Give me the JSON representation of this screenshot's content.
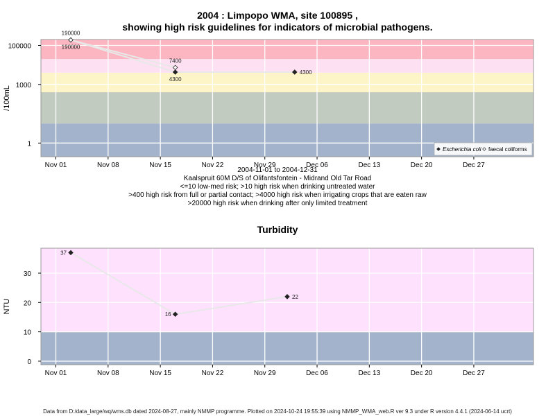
{
  "page": {
    "title_line1": "2004 : Limpopo WMA, site 100895 ,",
    "title_line2": "showing high risk guidelines for indicators of microbial pathogens.",
    "caption_lines": [
      "2004-11-01 to 2004-12-31",
      "Kaalspruit 60M D/S of Olifantsfontein - Midrand Old Tar Road",
      "<=10 low-med risk; >10 high risk when drinking untreated water",
      ">400 high risk from full or partial contact; >4000 high risk when irrigating crops that are eaten raw",
      ">20000 high risk when drinking after only limited treatment"
    ],
    "turbidity_title": "Turbidity",
    "footer": "Data from D:/data_large/wq/wms.db dated 2024-08-27, mainly NMMP programme. Plotted on 2024-10-24 19:55:39 using NMMP_WMA_web.R ver 9.3 under R version 4.4.1 (2024-06-14 ucrt)"
  },
  "chart_data": [
    {
      "type": "scatter",
      "ylabel": "/100mL",
      "yscale": "log",
      "ylim": [
        0.2,
        200000
      ],
      "x_ticks": [
        "Nov 01",
        "Nov 08",
        "Nov 15",
        "Nov 22",
        "Nov 29",
        "Dec 06",
        "Dec 13",
        "Dec 20",
        "Dec 27"
      ],
      "x_tick_dates": [
        "2004-11-01",
        "2004-11-08",
        "2004-11-15",
        "2004-11-22",
        "2004-11-29",
        "2004-12-06",
        "2004-12-13",
        "2004-12-20",
        "2004-12-27"
      ],
      "y_ticks": [
        1,
        1000,
        100000
      ],
      "y_tick_labels": [
        "1",
        "1000",
        "100000"
      ],
      "xlim": [
        "2004-10-30",
        "2005-01-04"
      ],
      "grid": true,
      "legend_position": "bottom-right",
      "bands": [
        {
          "from": 0.2,
          "to": 10,
          "color": "#a2b3cb"
        },
        {
          "from": 10,
          "to": 400,
          "color": "#c1cbc0"
        },
        {
          "from": 400,
          "to": 4000,
          "color": "#fdf5c7"
        },
        {
          "from": 4000,
          "to": 20000,
          "color": "#fde1f2"
        },
        {
          "from": 20000,
          "to": 200000,
          "color": "#fbb6c1"
        }
      ],
      "series": [
        {
          "name": "Escherichia coli",
          "marker": "filled-diamond",
          "color": "#222222",
          "points": [
            {
              "x": "2004-11-03",
              "y": 190000,
              "label": "190000",
              "label_pos": "below"
            },
            {
              "x": "2004-11-17",
              "y": 4300,
              "label": "4300",
              "label_pos": "below"
            },
            {
              "x": "2004-12-03",
              "y": 4300,
              "label": "4300",
              "label_pos": "right"
            }
          ]
        },
        {
          "name": "faecal coliforms",
          "marker": "open-diamond",
          "color": "#222222",
          "points": [
            {
              "x": "2004-11-03",
              "y": 190000,
              "label": "190000",
              "label_pos": "above"
            },
            {
              "x": "2004-11-17",
              "y": 7400,
              "label": "7400",
              "label_pos": "above"
            }
          ]
        }
      ]
    },
    {
      "type": "scatter",
      "title": "Turbidity",
      "ylabel": "NTU",
      "ylim": [
        -1.2,
        38.5
      ],
      "x_ticks": [
        "Nov 01",
        "Nov 08",
        "Nov 15",
        "Nov 22",
        "Nov 29",
        "Dec 06",
        "Dec 13",
        "Dec 20",
        "Dec 27"
      ],
      "x_tick_dates": [
        "2004-11-01",
        "2004-11-08",
        "2004-11-15",
        "2004-11-22",
        "2004-11-29",
        "2004-12-06",
        "2004-12-13",
        "2004-12-20",
        "2004-12-27"
      ],
      "y_ticks": [
        0,
        10,
        20,
        30
      ],
      "y_tick_labels": [
        "0",
        "10",
        "20",
        "30"
      ],
      "xlim": [
        "2004-10-30",
        "2005-01-04"
      ],
      "grid": true,
      "bands": [
        {
          "from": -1.2,
          "to": 10,
          "color": "#a2b3cb"
        },
        {
          "from": 10,
          "to": 38.5,
          "color": "#fde1fd"
        }
      ],
      "series": [
        {
          "marker": "filled-diamond",
          "color": "#222222",
          "points": [
            {
              "x": "2004-11-03",
              "y": 37,
              "label": "37",
              "label_pos": "left"
            },
            {
              "x": "2004-11-17",
              "y": 16,
              "label": "16",
              "label_pos": "left"
            },
            {
              "x": "2004-12-02",
              "y": 22,
              "label": "22",
              "label_pos": "right"
            }
          ]
        }
      ]
    }
  ]
}
